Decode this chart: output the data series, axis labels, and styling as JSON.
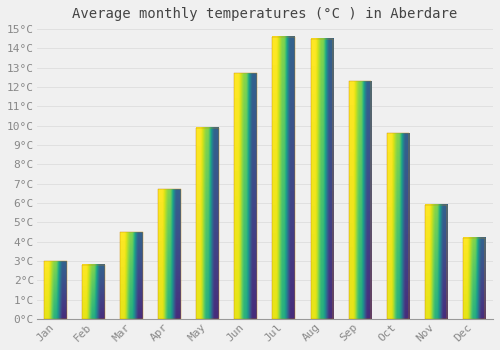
{
  "title": "Average monthly temperatures (°C ) in Aberdare",
  "months": [
    "Jan",
    "Feb",
    "Mar",
    "Apr",
    "May",
    "Jun",
    "Jul",
    "Aug",
    "Sep",
    "Oct",
    "Nov",
    "Dec"
  ],
  "values": [
    3.0,
    2.8,
    4.5,
    6.7,
    9.9,
    12.7,
    14.6,
    14.5,
    12.3,
    9.6,
    5.9,
    4.2
  ],
  "bar_color_bottom": "#F5A020",
  "bar_color_top": "#FFD050",
  "background_color": "#F0F0F0",
  "grid_color": "#DDDDDD",
  "title_color": "#444444",
  "tick_label_color": "#888888",
  "ylim": [
    0,
    15
  ],
  "ytick_step": 1,
  "title_fontsize": 10,
  "tick_fontsize": 8,
  "font_family": "monospace"
}
